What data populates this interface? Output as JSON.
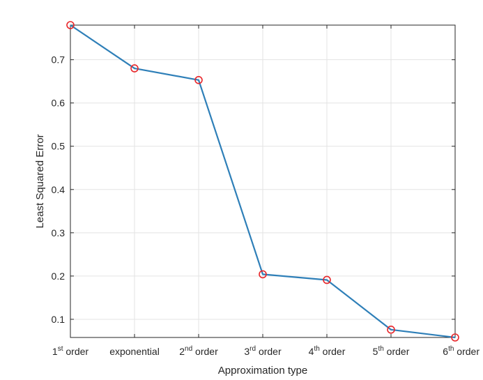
{
  "chart_data": {
    "type": "line",
    "xlabel": "Approximation type",
    "ylabel": "Least Squared Error",
    "categories": [
      {
        "base": "1",
        "sup": "st",
        "rest": " order"
      },
      {
        "base": "exponential",
        "sup": "",
        "rest": ""
      },
      {
        "base": "2",
        "sup": "nd",
        "rest": " order"
      },
      {
        "base": "3",
        "sup": "rd",
        "rest": " order"
      },
      {
        "base": "4",
        "sup": "th",
        "rest": " order"
      },
      {
        "base": "5",
        "sup": "th",
        "rest": " order"
      },
      {
        "base": "6",
        "sup": "th",
        "rest": " order"
      }
    ],
    "series": [
      {
        "values": [
          0.78,
          0.68,
          0.653,
          0.204,
          0.191,
          0.076,
          0.058
        ],
        "line_color": "#2e7fb8",
        "marker": "circle",
        "marker_color": "#e8262a"
      }
    ],
    "ylim": [
      0.058,
      0.78
    ],
    "yticks": [
      "0.1",
      "0.2",
      "0.3",
      "0.4",
      "0.5",
      "0.6",
      "0.7"
    ],
    "ytick_values": [
      0.1,
      0.2,
      0.3,
      0.4,
      0.5,
      0.6,
      0.7
    ],
    "grid": true
  }
}
